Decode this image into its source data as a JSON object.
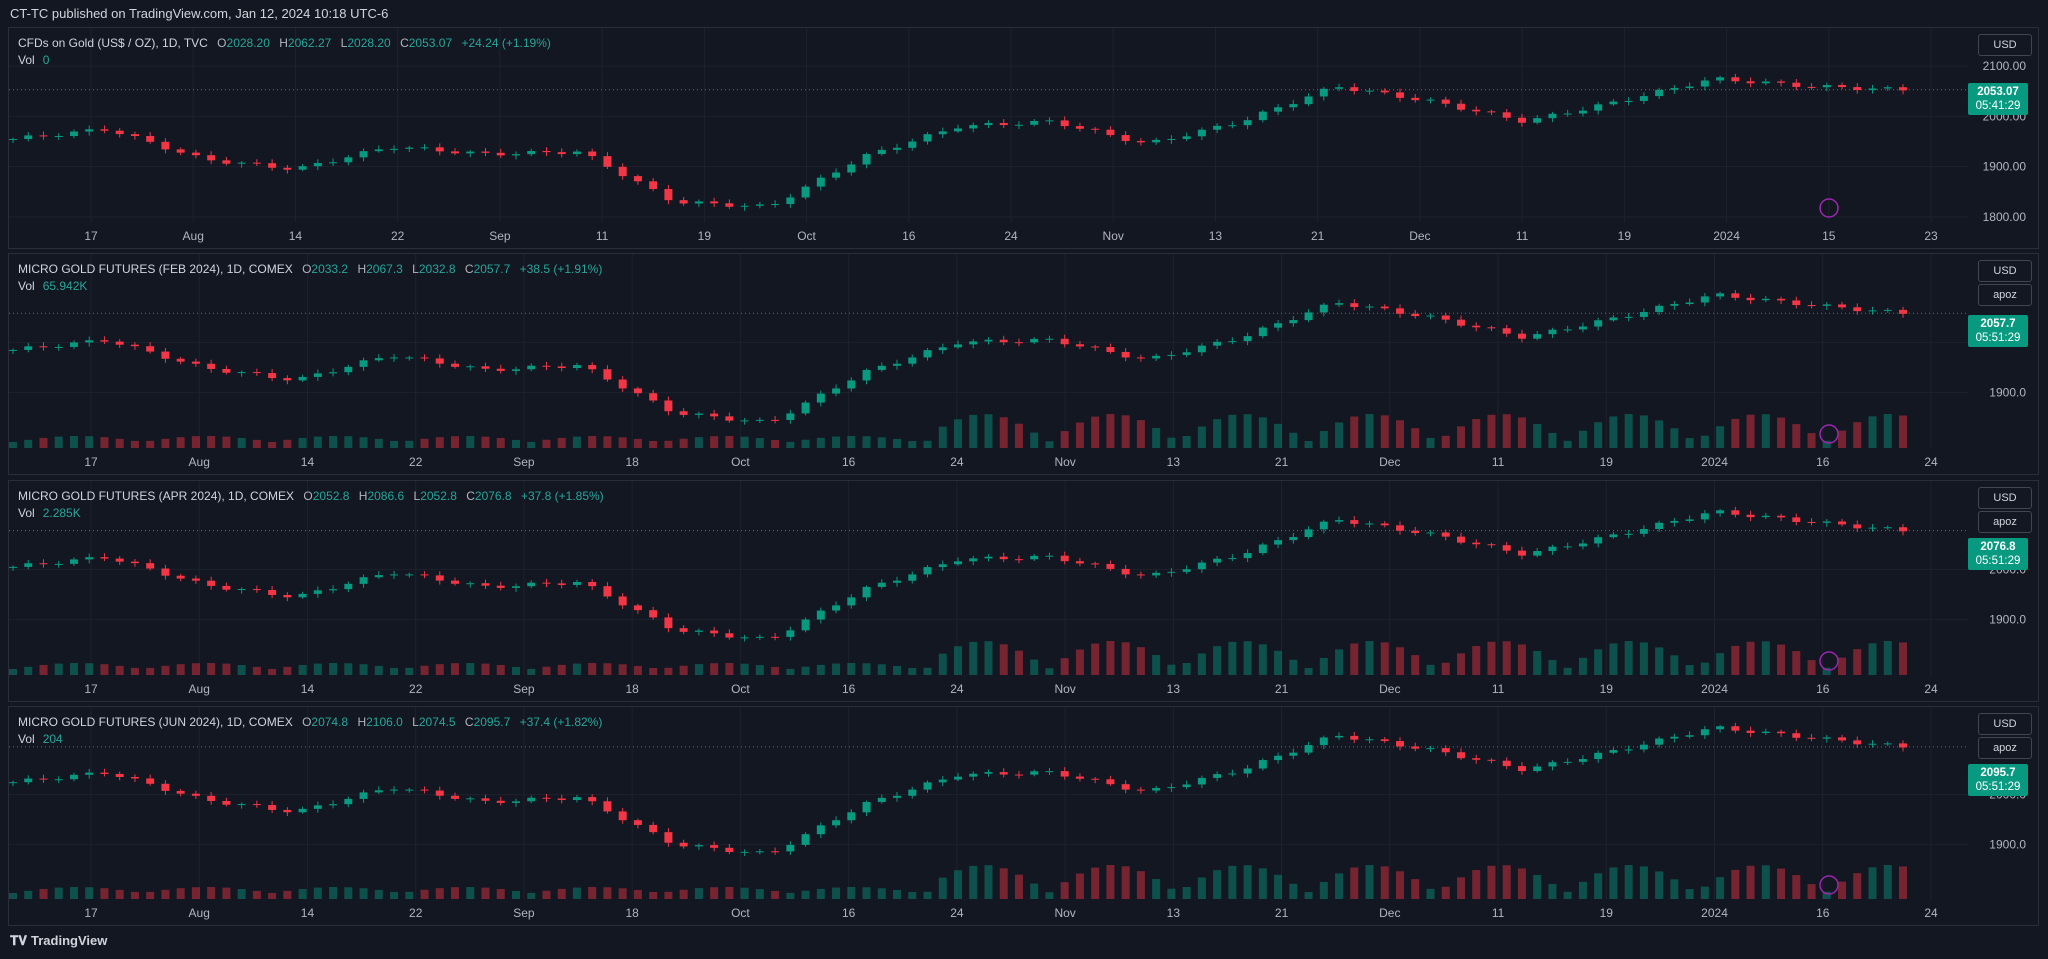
{
  "header": {
    "title": "CT-TC published on TradingView.com, Jan 12, 2024 10:18 UTC-6"
  },
  "footer": {
    "logo": "𝐓𝐕",
    "brand": "TradingView"
  },
  "colors": {
    "up": "#089981",
    "down": "#f23645",
    "bg": "#131722",
    "grid": "#1e222d",
    "text": "#b2b5be"
  },
  "x_ticks": [
    "17",
    "Aug",
    "14",
    "22",
    "Sep",
    "11",
    "19",
    "Oct",
    "16",
    "24",
    "Nov",
    "13",
    "21",
    "Dec",
    "11",
    "19",
    "2024",
    "15",
    "23"
  ],
  "panes": [
    {
      "title": "CFDs on Gold (US$ / OZ), 1D, TVC",
      "o_label": "O",
      "o": "2028.20",
      "h_label": "H",
      "h": "2062.27",
      "l_label": "L",
      "l": "2028.20",
      "c_label": "C",
      "c": "2053.07",
      "change": "+24.24 (+1.19%)",
      "vol_label": "Vol",
      "vol": "0",
      "scale_buttons": [
        "USD"
      ],
      "price_tag": "2053.07",
      "countdown": "05:41:29",
      "y_ticks": [
        "2100.00",
        "2000.00",
        "1900.00",
        "1800.00"
      ],
      "x_ticks": [
        "17",
        "Aug",
        "14",
        "22",
        "Sep",
        "11",
        "19",
        "Oct",
        "16",
        "24",
        "Nov",
        "13",
        "21",
        "Dec",
        "11",
        "19",
        "2024",
        "15",
        "23"
      ]
    },
    {
      "title": "MICRO GOLD FUTURES (FEB 2024), 1D, COMEX",
      "o_label": "O",
      "o": "2033.2",
      "h_label": "H",
      "h": "2067.3",
      "l_label": "L",
      "l": "2032.8",
      "c_label": "C",
      "c": "2057.7",
      "change": "+38.5 (+1.91%)",
      "vol_label": "Vol",
      "vol": "65.942K",
      "scale_buttons": [
        "USD",
        "apoz"
      ],
      "price_tag": "2057.7",
      "countdown": "05:51:29",
      "y_ticks": [
        "2000.0",
        "1900.0"
      ],
      "x_ticks": [
        "17",
        "Aug",
        "14",
        "22",
        "Sep",
        "18",
        "Oct",
        "16",
        "24",
        "Nov",
        "13",
        "21",
        "Dec",
        "11",
        "19",
        "2024",
        "16",
        "24"
      ]
    },
    {
      "title": "MICRO GOLD FUTURES (APR 2024), 1D, COMEX",
      "o_label": "O",
      "o": "2052.8",
      "h_label": "H",
      "h": "2086.6",
      "l_label": "L",
      "l": "2052.8",
      "c_label": "C",
      "c": "2076.8",
      "change": "+37.8 (+1.85%)",
      "vol_label": "Vol",
      "vol": "2.285K",
      "scale_buttons": [
        "USD",
        "apoz"
      ],
      "price_tag": "2076.8",
      "countdown": "05:51:29",
      "y_ticks": [
        "2000.0",
        "1900.0"
      ],
      "x_ticks": [
        "17",
        "Aug",
        "14",
        "22",
        "Sep",
        "18",
        "Oct",
        "16",
        "24",
        "Nov",
        "13",
        "21",
        "Dec",
        "11",
        "19",
        "2024",
        "16",
        "24"
      ]
    },
    {
      "title": "MICRO GOLD FUTURES (JUN 2024), 1D, COMEX",
      "o_label": "O",
      "o": "2074.8",
      "h_label": "H",
      "h": "2106.0",
      "l_label": "L",
      "l": "2074.5",
      "c_label": "C",
      "c": "2095.7",
      "change": "+37.4 (+1.82%)",
      "vol_label": "Vol",
      "vol": "204",
      "scale_buttons": [
        "USD",
        "apoz"
      ],
      "price_tag": "2095.7",
      "countdown": "05:51:29",
      "y_ticks": [
        "2000.0",
        "1900.0"
      ],
      "x_ticks": [
        "17",
        "Aug",
        "14",
        "22",
        "Sep",
        "18",
        "Oct",
        "16",
        "24",
        "Nov",
        "13",
        "21",
        "Dec",
        "11",
        "19",
        "2024",
        "16",
        "24"
      ]
    }
  ],
  "chart_data": {
    "type": "line",
    "x": [
      "Jul 17",
      "Aug 1",
      "Aug 14",
      "Aug 22",
      "Sep 1",
      "Sep 11",
      "Sep 19",
      "Oct 1",
      "Oct 5",
      "Oct 16",
      "Oct 24",
      "Nov 1",
      "Nov 13",
      "Nov 21",
      "Dec 1",
      "Dec 4",
      "Dec 11",
      "Dec 19",
      "Dec 28",
      "Jan 2",
      "Jan 12"
    ],
    "series": [
      {
        "name": "CFDs on Gold (US$ / OZ), 1D, TVC",
        "values": [
          1955,
          1975,
          1915,
          1895,
          1940,
          1925,
          1930,
          1830,
          1820,
          1920,
          1980,
          1990,
          1945,
          1990,
          2060,
          2030,
          1990,
          2030,
          2075,
          2060,
          2053
        ]
      },
      {
        "name": "MICRO GOLD FUTURES (FEB 2024), 1D, COMEX",
        "values": [
          1985,
          2005,
          1950,
          1925,
          1975,
          1945,
          1955,
          1860,
          1840,
          1940,
          2000,
          2005,
          1965,
          2010,
          2080,
          2050,
          2010,
          2050,
          2095,
          2075,
          2058
        ]
      },
      {
        "name": "MICRO GOLD FUTURES (APR 2024), 1D, COMEX",
        "values": [
          2005,
          2025,
          1970,
          1945,
          1995,
          1965,
          1975,
          1880,
          1860,
          1960,
          2020,
          2025,
          1985,
          2030,
          2100,
          2070,
          2030,
          2070,
          2115,
          2095,
          2077
        ]
      },
      {
        "name": "MICRO GOLD FUTURES (JUN 2024), 1D, COMEX",
        "values": [
          2025,
          2045,
          1990,
          1965,
          2015,
          1985,
          1995,
          1900,
          1880,
          1980,
          2040,
          2045,
          2005,
          2050,
          2120,
          2090,
          2050,
          2090,
          2135,
          2115,
          2096
        ]
      }
    ],
    "ylim": [
      1790,
      2140
    ]
  }
}
